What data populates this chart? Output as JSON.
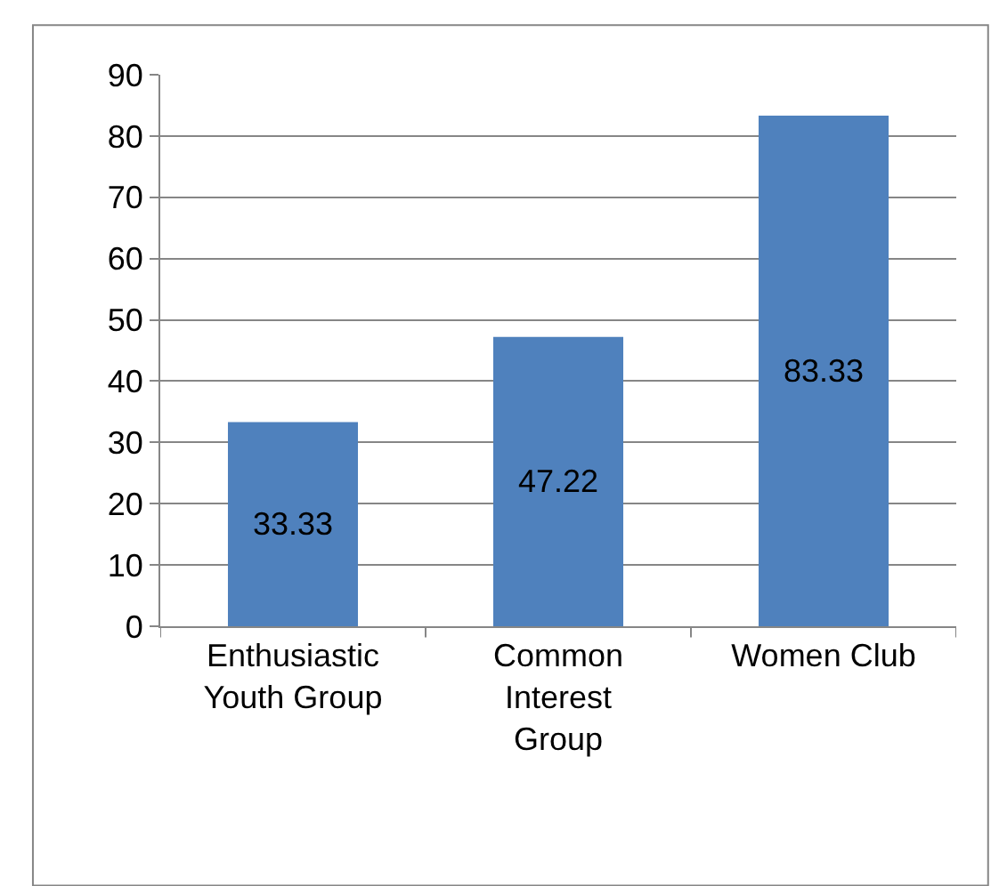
{
  "chart_data": {
    "type": "bar",
    "categories": [
      "Enthusiastic Youth Group",
      "Common Interest Group",
      "Women Club"
    ],
    "values": [
      33.33,
      47.22,
      83.33
    ],
    "color": "#4f81bd",
    "ylim": [
      0,
      90
    ],
    "yticks": [
      0,
      10,
      20,
      30,
      40,
      50,
      60,
      70,
      80,
      90
    ],
    "grid": "y",
    "data_labels": true
  }
}
